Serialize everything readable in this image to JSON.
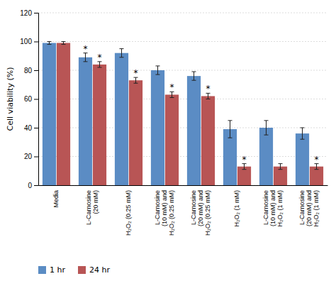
{
  "chart_data": {
    "type": "bar",
    "categories": [
      "Media",
      "L-Carnosine\n(20 mM)",
      "H₂O₂ (0.25 mM)",
      "L-Carnosine\n(10 mM) and\nH₂O₂ (0.25 mM)",
      "L-Carnosine\n(20 mM) and\nH₂O₂ (0.25 mM)",
      "H₂O₂ (1 mM)",
      "L-Carnosine\n(10 mM) and\nH₂O₂ (1 mM)",
      "L-Carnosine\n(20 mM) and\nH₂O₂ (1 mM)"
    ],
    "series": [
      {
        "name": "1 hr",
        "color": "#5b8cc4",
        "values": [
          99,
          89,
          92,
          80,
          76,
          39,
          40,
          36
        ],
        "errors": [
          1,
          3,
          3,
          3,
          3,
          6,
          5,
          4
        ]
      },
      {
        "name": "24 hr",
        "color": "#b85555",
        "values": [
          99,
          84,
          73,
          63,
          62,
          13,
          13,
          13
        ],
        "errors": [
          1,
          2,
          2,
          2,
          2,
          2,
          2,
          2
        ]
      }
    ],
    "annotations": [
      {
        "text": "*",
        "series": "1 hr",
        "category": "L-Carnosine\n(20 mM)"
      },
      {
        "text": "*",
        "series": "24 hr",
        "category": "L-Carnosine\n(20 mM)"
      },
      {
        "text": "*",
        "series": "24 hr",
        "category": "H₂O₂ (0.25 mM)"
      },
      {
        "text": "*",
        "series": "24 hr",
        "category": "L-Carnosine\n(10 mM) and\nH₂O₂ (0.25 mM)"
      },
      {
        "text": "*",
        "series": "24 hr",
        "category": "L-Carnosine\n(20 mM) and\nH₂O₂ (0.25 mM)"
      },
      {
        "text": "*",
        "series": "24 hr",
        "category": "H₂O₂ (1 mM)"
      },
      {
        "text": "*",
        "series": "24 hr",
        "category": "L-Carnosine\n(20 mM) and\nH₂O₂ (1 mM)"
      }
    ],
    "ylabel": "Cell viability (%)",
    "ylim": [
      0,
      120
    ],
    "yticks": [
      0,
      20,
      40,
      60,
      80,
      100,
      120
    ],
    "grid": true,
    "legend": "bottom"
  }
}
